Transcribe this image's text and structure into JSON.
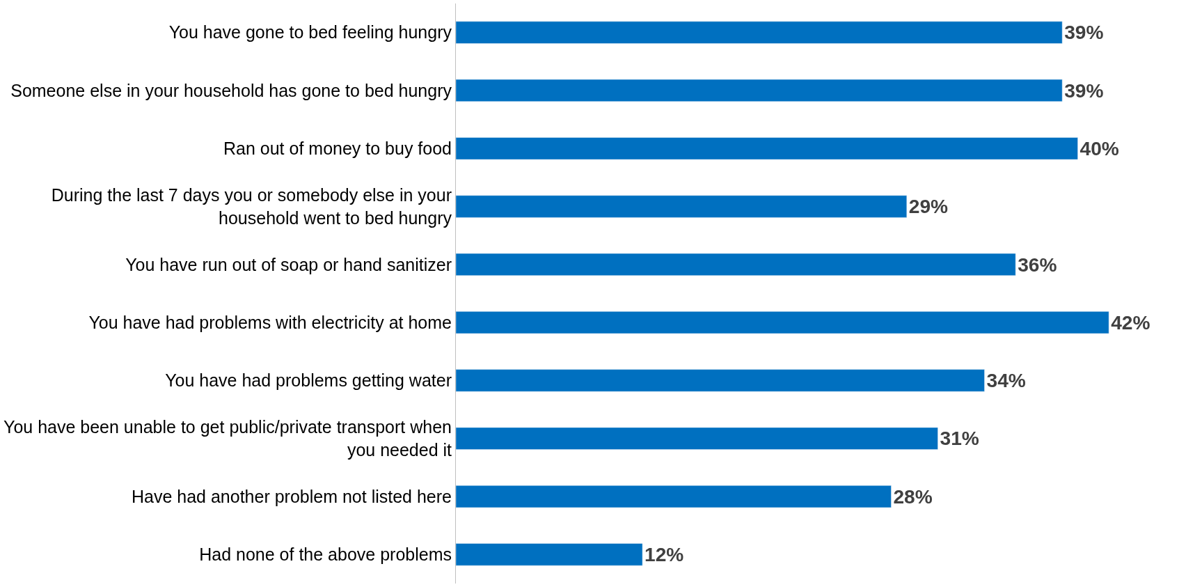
{
  "chart_data": {
    "type": "bar",
    "orientation": "horizontal",
    "categories": [
      "You have gone to bed feeling hungry",
      "Someone else in your household has gone to bed hungry",
      "Ran out of money to buy food",
      "During the last 7 days you or somebody else in your household went to bed hungry",
      "You have run out of soap or hand sanitizer",
      "You have had problems with electricity at home",
      "You have had problems getting water",
      "You have been unable to get public/private transport when you needed it",
      "Have had another problem not listed here",
      "Had none of the above problems"
    ],
    "values": [
      39,
      39,
      40,
      29,
      36,
      42,
      34,
      31,
      28,
      12
    ],
    "value_labels": [
      "39%",
      "39%",
      "40%",
      "29%",
      "36%",
      "42%",
      "34%",
      "31%",
      "28%",
      "12%"
    ],
    "color": "#0070c0"
  }
}
